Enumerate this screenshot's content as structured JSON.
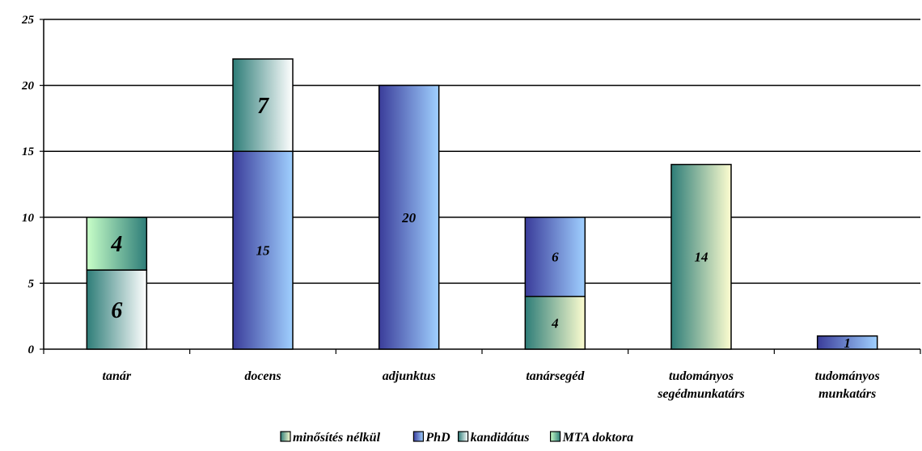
{
  "chart_data": {
    "type": "bar",
    "stacked": true,
    "categories": [
      [
        "tanár"
      ],
      [
        "docens"
      ],
      [
        "adjunktus"
      ],
      [
        "tanársegéd"
      ],
      [
        "tudományos",
        "segédmunkatárs"
      ],
      [
        "tudományos",
        "munkatárs"
      ]
    ],
    "series": [
      {
        "name": "minősítés nélkül",
        "values": [
          0,
          0,
          0,
          4,
          14,
          0
        ]
      },
      {
        "name": "PhD",
        "values": [
          0,
          15,
          20,
          6,
          0,
          1
        ]
      },
      {
        "name": "kandidátus",
        "values": [
          6,
          7,
          0,
          0,
          0,
          0
        ]
      },
      {
        "name": "MTA doktora",
        "values": [
          4,
          0,
          0,
          0,
          0,
          0
        ]
      }
    ],
    "ylim": [
      0,
      25
    ],
    "yticks": [
      "0",
      "5",
      "10",
      "15",
      "20",
      "25"
    ],
    "grid": true,
    "legend_position": "bottom",
    "colors": {
      "minősítés nélkül": [
        "#2e7d78",
        "#fdfdd0"
      ],
      "PhD": [
        "#3a3c9a",
        "#a0d0ff"
      ],
      "kandidátus": [
        "#2e7d78",
        "#ffffff"
      ],
      "MTA doktora": [
        "#c8ffc8",
        "#2e7d78"
      ]
    }
  }
}
